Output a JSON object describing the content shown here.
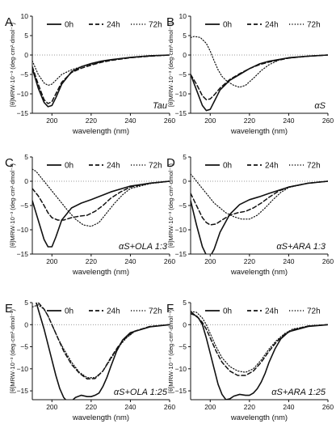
{
  "chart_data": [
    {
      "panel": "A",
      "type": "line",
      "annotation": "Tau",
      "xlabel": "wavelength (nm)",
      "ylabel": "[θ]MRW·10⁻³ (deg·cm²·dmol⁻¹)",
      "xlim": [
        190,
        260
      ],
      "ylim": [
        -15,
        10
      ],
      "xticks": [
        200,
        220,
        240,
        260
      ],
      "yticks": [
        -15,
        -10,
        -5,
        0,
        5,
        10
      ],
      "zero_line": true,
      "legend_position": "top",
      "series": [
        {
          "name": "0h",
          "style": "solid",
          "x": [
            190,
            193,
            196,
            198,
            200,
            202,
            205,
            210,
            215,
            220,
            225,
            230,
            240,
            250,
            260
          ],
          "y": [
            -3.5,
            -8.5,
            -12.2,
            -13.3,
            -13,
            -11,
            -7.5,
            -4.3,
            -3,
            -2.2,
            -1.6,
            -1.2,
            -0.6,
            -0.2,
            0
          ]
        },
        {
          "name": "24h",
          "style": "dashed",
          "x": [
            190,
            193,
            196,
            198,
            200,
            202,
            205,
            210,
            215,
            220,
            225,
            230,
            240,
            250,
            260
          ],
          "y": [
            -3,
            -7.5,
            -11.5,
            -12.5,
            -12,
            -10,
            -7,
            -4.5,
            -3.4,
            -2.6,
            -1.9,
            -1.4,
            -0.7,
            -0.3,
            0
          ]
        },
        {
          "name": "72h",
          "style": "dotted",
          "x": [
            190,
            193,
            196,
            198,
            200,
            202,
            205,
            210,
            215,
            220,
            225,
            230,
            240,
            250,
            260
          ],
          "y": [
            -1.5,
            -5,
            -7.2,
            -7.8,
            -7.5,
            -6.5,
            -5,
            -3.8,
            -3,
            -2.4,
            -1.8,
            -1.3,
            -0.7,
            -0.3,
            0
          ]
        }
      ]
    },
    {
      "panel": "B",
      "type": "line",
      "annotation": "αS",
      "xlabel": "wavelength (nm)",
      "ylabel": "[θ]MRW·10⁻³ (deg·cm²·dmol⁻¹)",
      "xlim": [
        190,
        260
      ],
      "ylim": [
        -15,
        10
      ],
      "xticks": [
        200,
        220,
        240,
        260
      ],
      "yticks": [
        -15,
        -10,
        -5,
        0,
        5,
        10
      ],
      "zero_line": true,
      "legend_position": "top",
      "series": [
        {
          "name": "0h",
          "style": "solid",
          "x": [
            190,
            193,
            196,
            198,
            200,
            202,
            205,
            210,
            215,
            220,
            225,
            230,
            240,
            250,
            260
          ],
          "y": [
            -5,
            -9,
            -13,
            -14.3,
            -14,
            -12,
            -9,
            -6.5,
            -5,
            -3.5,
            -2.3,
            -1.6,
            -0.7,
            -0.3,
            0
          ]
        },
        {
          "name": "24h",
          "style": "dashed",
          "x": [
            190,
            193,
            196,
            198,
            200,
            202,
            205,
            210,
            215,
            220,
            225,
            230,
            240,
            250,
            260
          ],
          "y": [
            -5,
            -7.5,
            -10.5,
            -11.5,
            -11.3,
            -10.3,
            -8.5,
            -6.3,
            -4.8,
            -3.5,
            -2.5,
            -1.8,
            -0.8,
            -0.3,
            0
          ]
        },
        {
          "name": "72h",
          "style": "dotted",
          "x": [
            190,
            192,
            195,
            198,
            200,
            202,
            204,
            206,
            208,
            210,
            212,
            215,
            218,
            222,
            226,
            230,
            235,
            240,
            250,
            260
          ],
          "y": [
            4.5,
            4.8,
            4.5,
            3,
            1,
            -1.5,
            -3.8,
            -5.5,
            -6.5,
            -7.2,
            -7.8,
            -8.3,
            -7.8,
            -6,
            -4,
            -2.5,
            -1.3,
            -0.8,
            -0.3,
            0
          ]
        }
      ]
    },
    {
      "panel": "C",
      "type": "line",
      "annotation": "αS+OLA 1:3",
      "xlabel": "wavelength (nm)",
      "ylabel": "[θ]MRW·10⁻³ (deg·cm²·dmol⁻¹)",
      "xlim": [
        190,
        260
      ],
      "ylim": [
        -15,
        5
      ],
      "xticks": [
        200,
        220,
        240,
        260
      ],
      "yticks": [
        -15,
        -10,
        -5,
        0,
        5
      ],
      "zero_line": true,
      "legend_position": "top",
      "series": [
        {
          "name": "0h",
          "style": "solid",
          "x": [
            190,
            193,
            196,
            198,
            200,
            202,
            205,
            210,
            215,
            220,
            225,
            230,
            240,
            250,
            260
          ],
          "y": [
            -4,
            -8,
            -12,
            -13.5,
            -13.5,
            -11.5,
            -8,
            -5.5,
            -4.5,
            -3.8,
            -3,
            -2.2,
            -1,
            -0.4,
            0
          ]
        },
        {
          "name": "24h",
          "style": "dashed",
          "x": [
            190,
            193,
            196,
            198,
            200,
            203,
            206,
            210,
            214,
            218,
            222,
            226,
            230,
            235,
            240,
            250,
            260
          ],
          "y": [
            -1.5,
            -3,
            -5,
            -6.5,
            -7.5,
            -8,
            -8,
            -7.5,
            -7.2,
            -7,
            -6.2,
            -5,
            -3.5,
            -2.2,
            -1.2,
            -0.4,
            0
          ]
        },
        {
          "name": "72h",
          "style": "dotted",
          "x": [
            190,
            192,
            195,
            198,
            200,
            202,
            205,
            208,
            212,
            216,
            220,
            224,
            228,
            232,
            236,
            240,
            250,
            260
          ],
          "y": [
            2.5,
            2,
            0.5,
            -1,
            -2,
            -3,
            -4.5,
            -6,
            -7.8,
            -9,
            -9.3,
            -8.5,
            -6.5,
            -4.5,
            -2.8,
            -1.5,
            -0.5,
            0
          ]
        }
      ]
    },
    {
      "panel": "D",
      "type": "line",
      "annotation": "αS+ARA 1:3",
      "xlabel": "wavelength (nm)",
      "ylabel": "[θ]MRW·10⁻³ (deg·cm²·dmol⁻¹)",
      "xlim": [
        190,
        260
      ],
      "ylim": [
        -15,
        5
      ],
      "xticks": [
        200,
        220,
        240,
        260
      ],
      "yticks": [
        -15,
        -10,
        -5,
        0,
        5
      ],
      "zero_line": true,
      "legend_position": "top",
      "series": [
        {
          "name": "0h",
          "style": "solid",
          "x": [
            190,
            193,
            196,
            198,
            200,
            202,
            205,
            210,
            215,
            220,
            225,
            230,
            240,
            250,
            260
          ],
          "y": [
            -4,
            -9,
            -13.5,
            -15.2,
            -15.5,
            -14,
            -10.5,
            -6.8,
            -4.8,
            -3.8,
            -3.2,
            -2.5,
            -1.2,
            -0.4,
            0
          ]
        },
        {
          "name": "24h",
          "style": "dashed",
          "x": [
            190,
            193,
            196,
            198,
            200,
            203,
            206,
            210,
            214,
            218,
            222,
            226,
            230,
            235,
            240,
            250,
            260
          ],
          "y": [
            -2.5,
            -5,
            -7.5,
            -8.5,
            -9,
            -8.8,
            -8,
            -7,
            -6.5,
            -6.2,
            -5.5,
            -4.5,
            -3.3,
            -2,
            -1.2,
            -0.4,
            0
          ]
        },
        {
          "name": "72h",
          "style": "dotted",
          "x": [
            190,
            192,
            195,
            198,
            200,
            202,
            205,
            208,
            212,
            216,
            220,
            224,
            228,
            232,
            236,
            240,
            250,
            260
          ],
          "y": [
            1.5,
            0.5,
            -1,
            -2.5,
            -3.5,
            -4.5,
            -5.5,
            -6.5,
            -7.3,
            -7.8,
            -7.8,
            -7,
            -5.5,
            -3.8,
            -2.3,
            -1.3,
            -0.4,
            0
          ]
        }
      ]
    },
    {
      "panel": "E",
      "type": "line",
      "annotation": "αS+OLA 1:25",
      "xlabel": "wavelength (nm)",
      "ylabel": "[θ]MRW·10⁻³ (deg·cm²·dmol⁻¹)",
      "xlim": [
        190,
        260
      ],
      "ylim": [
        -17,
        5
      ],
      "xticks": [
        200,
        220,
        240,
        260
      ],
      "yticks": [
        -15,
        -10,
        -5,
        0,
        5
      ],
      "zero_line": true,
      "legend_position": "top",
      "series": [
        {
          "name": "0h",
          "style": "solid",
          "x": [
            190,
            192,
            194,
            196,
            198,
            200,
            202,
            204,
            206,
            208,
            210,
            212,
            215,
            218,
            220,
            222,
            224,
            226,
            228,
            230,
            233,
            236,
            240,
            250,
            260
          ],
          "y": [
            8,
            5,
            2,
            -1,
            -4.5,
            -8,
            -11.5,
            -14.5,
            -16.5,
            -17.5,
            -17.3,
            -16.5,
            -16,
            -16.3,
            -16.3,
            -16,
            -15.5,
            -14,
            -12,
            -9.5,
            -6,
            -3.5,
            -1.8,
            -0.5,
            0
          ]
        },
        {
          "name": "24h",
          "style": "dashed",
          "x": [
            190,
            193,
            196,
            198,
            200,
            203,
            206,
            210,
            214,
            218,
            222,
            226,
            230,
            234,
            238,
            242,
            250,
            260
          ],
          "y": [
            5.5,
            5,
            3.5,
            2,
            0,
            -3,
            -6,
            -9,
            -11,
            -12.3,
            -12.2,
            -10.5,
            -7.5,
            -4.8,
            -2.8,
            -1.5,
            -0.4,
            0
          ]
        },
        {
          "name": "72h",
          "style": "dotted",
          "x": [
            190,
            193,
            196,
            198,
            200,
            203,
            206,
            210,
            214,
            218,
            222,
            226,
            230,
            234,
            238,
            242,
            250,
            260
          ],
          "y": [
            4,
            4.5,
            3.5,
            2,
            0,
            -3,
            -5.5,
            -8.5,
            -10.8,
            -12,
            -12,
            -10.5,
            -7.8,
            -5,
            -3,
            -1.6,
            -0.4,
            0
          ]
        }
      ]
    },
    {
      "panel": "F",
      "type": "line",
      "annotation": "αS+ARA 1:25",
      "xlabel": "wavelength (nm)",
      "ylabel": "[θ]MRW·10⁻³ (deg·cm²·dmol⁻¹)",
      "xlim": [
        190,
        260
      ],
      "ylim": [
        -17,
        5
      ],
      "xticks": [
        200,
        220,
        240,
        260
      ],
      "yticks": [
        -15,
        -10,
        -5,
        0,
        5
      ],
      "zero_line": true,
      "legend_position": "top",
      "series": [
        {
          "name": "0h",
          "style": "solid",
          "x": [
            190,
            192,
            194,
            196,
            198,
            200,
            202,
            204,
            206,
            208,
            210,
            212,
            215,
            218,
            220,
            222,
            224,
            226,
            228,
            230,
            233,
            236,
            240,
            250,
            260
          ],
          "y": [
            3,
            2.2,
            1.5,
            0,
            -3,
            -6.5,
            -10,
            -13.5,
            -15.8,
            -17,
            -16.8,
            -16.2,
            -15.8,
            -16,
            -16,
            -15.5,
            -14.5,
            -13,
            -11,
            -8.5,
            -5.5,
            -3.2,
            -1.6,
            -0.4,
            0
          ]
        },
        {
          "name": "24h",
          "style": "dashed",
          "x": [
            190,
            193,
            196,
            198,
            200,
            203,
            206,
            210,
            214,
            218,
            222,
            226,
            230,
            234,
            238,
            242,
            250,
            260
          ],
          "y": [
            2.5,
            2,
            0.5,
            -1,
            -3,
            -6,
            -8.5,
            -10.5,
            -11.5,
            -11.5,
            -10.5,
            -8.5,
            -6,
            -3.8,
            -2.2,
            -1.2,
            -0.3,
            0
          ]
        },
        {
          "name": "72h",
          "style": "dotted",
          "x": [
            190,
            193,
            196,
            198,
            200,
            203,
            206,
            210,
            214,
            218,
            222,
            226,
            230,
            234,
            238,
            242,
            250,
            260
          ],
          "y": [
            3,
            2.8,
            1.5,
            0,
            -2,
            -5,
            -7.5,
            -9.5,
            -10.5,
            -10.8,
            -10,
            -8,
            -5.5,
            -3.5,
            -2,
            -1,
            -0.3,
            0
          ]
        }
      ]
    }
  ]
}
